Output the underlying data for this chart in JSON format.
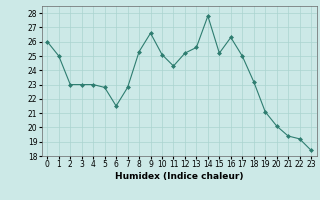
{
  "x": [
    0,
    1,
    2,
    3,
    4,
    5,
    6,
    7,
    8,
    9,
    10,
    11,
    12,
    13,
    14,
    15,
    16,
    17,
    18,
    19,
    20,
    21,
    22,
    23
  ],
  "y": [
    26,
    25,
    23,
    23,
    23,
    22.8,
    21.5,
    22.8,
    25.3,
    26.6,
    25.1,
    24.3,
    25.2,
    25.6,
    27.8,
    25.2,
    26.3,
    25.0,
    23.2,
    21.1,
    20.1,
    19.4,
    19.2,
    18.4
  ],
  "line_color": "#2e7d70",
  "marker": "D",
  "marker_size": 2,
  "bg_color": "#cce9e7",
  "grid_color": "#aad4d0",
  "xlabel": "Humidex (Indice chaleur)",
  "ylim": [
    18,
    28.5
  ],
  "xlim": [
    -0.5,
    23.5
  ],
  "yticks": [
    18,
    19,
    20,
    21,
    22,
    23,
    24,
    25,
    26,
    27,
    28
  ],
  "xticks": [
    0,
    1,
    2,
    3,
    4,
    5,
    6,
    7,
    8,
    9,
    10,
    11,
    12,
    13,
    14,
    15,
    16,
    17,
    18,
    19,
    20,
    21,
    22,
    23
  ],
  "label_fontsize": 6.5,
  "tick_fontsize": 5.5
}
